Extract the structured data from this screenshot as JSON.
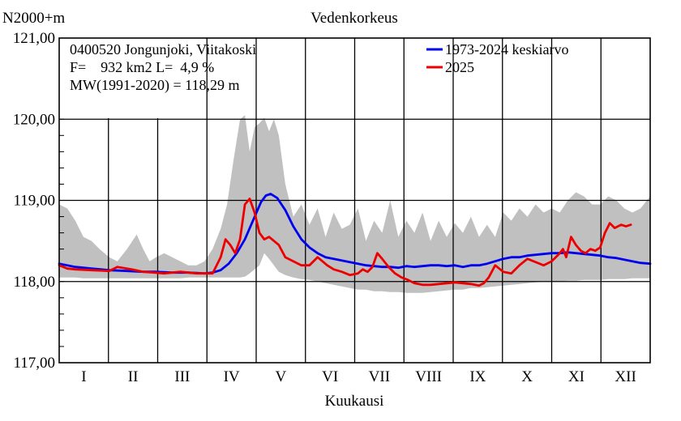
{
  "chart_data": {
    "type": "line",
    "title": "Vedenkorkeus",
    "ylabel": "N2000+m",
    "xlabel": "Kuukausi",
    "ylim": [
      117.0,
      121.0
    ],
    "yticks": [
      117.0,
      118.0,
      119.0,
      120.0,
      121.0
    ],
    "ytick_labels": [
      "117,00",
      "118,00",
      "119,00",
      "120,00",
      "121,00"
    ],
    "months": [
      "I",
      "II",
      "III",
      "IV",
      "V",
      "VI",
      "VII",
      "VIII",
      "IX",
      "X",
      "XI",
      "XII"
    ],
    "day_range": [
      0,
      366
    ],
    "info": {
      "station": "0400520 Jongunjoki, Viitakoski",
      "area": "F=    932 km2 L=  4,9 %",
      "mw": "MW(1991-2020) = 118,29 m"
    },
    "legend": [
      {
        "label": "1973-2024 keskiarvo",
        "color": "#0000ee"
      },
      {
        "label": "2025",
        "color": "#ee0000"
      }
    ],
    "band_color": "#c0c0c0",
    "band": {
      "days": [
        0,
        5,
        10,
        15,
        20,
        25,
        31,
        36,
        42,
        48,
        52,
        56,
        60,
        65,
        70,
        75,
        80,
        85,
        90,
        95,
        100,
        104,
        108,
        112,
        115,
        118,
        121,
        124,
        127,
        130,
        133,
        136,
        140,
        145,
        150,
        155,
        160,
        165,
        170,
        175,
        180,
        185,
        190,
        195,
        200,
        205,
        210,
        215,
        220,
        225,
        230,
        235,
        240,
        245,
        250,
        255,
        260,
        265,
        270,
        275,
        280,
        285,
        290,
        295,
        300,
        305,
        310,
        315,
        320,
        325,
        330,
        335,
        340,
        345,
        350,
        355,
        360,
        366
      ],
      "max": [
        118.95,
        118.9,
        118.75,
        118.55,
        118.5,
        118.4,
        118.3,
        118.25,
        118.4,
        118.58,
        118.4,
        118.25,
        118.3,
        118.35,
        118.3,
        118.25,
        118.2,
        118.2,
        118.25,
        118.4,
        118.65,
        118.95,
        119.5,
        120.0,
        120.05,
        119.6,
        119.9,
        119.95,
        120.02,
        119.85,
        120.0,
        119.8,
        119.2,
        118.8,
        118.95,
        118.7,
        118.9,
        118.55,
        118.85,
        118.65,
        118.7,
        118.9,
        118.5,
        118.75,
        118.6,
        119.0,
        118.55,
        118.75,
        118.6,
        118.85,
        118.5,
        118.75,
        118.55,
        118.72,
        118.6,
        118.8,
        118.55,
        118.7,
        118.55,
        118.85,
        118.75,
        118.9,
        118.8,
        118.95,
        118.85,
        118.9,
        118.85,
        119.0,
        119.1,
        119.05,
        118.95,
        118.95,
        119.05,
        119.0,
        118.9,
        118.85,
        118.9,
        119.05
      ],
      "min": [
        118.05,
        118.05,
        118.05,
        118.04,
        118.04,
        118.04,
        118.04,
        118.04,
        118.04,
        118.04,
        118.04,
        118.04,
        118.04,
        118.04,
        118.04,
        118.04,
        118.05,
        118.05,
        118.05,
        118.05,
        118.05,
        118.05,
        118.05,
        118.05,
        118.06,
        118.1,
        118.15,
        118.2,
        118.35,
        118.28,
        118.2,
        118.12,
        118.08,
        118.05,
        118.03,
        118.02,
        118.0,
        117.98,
        117.96,
        117.94,
        117.92,
        117.9,
        117.9,
        117.88,
        117.88,
        117.87,
        117.87,
        117.86,
        117.86,
        117.86,
        117.87,
        117.88,
        117.89,
        117.9,
        117.9,
        117.92,
        117.92,
        117.93,
        117.94,
        117.95,
        117.96,
        117.97,
        117.98,
        117.99,
        118.0,
        118.0,
        118.0,
        118.01,
        118.01,
        118.02,
        118.02,
        118.02,
        118.03,
        118.03,
        118.03,
        118.04,
        118.04,
        118.04
      ]
    },
    "series": [
      {
        "name": "1973-2024 keskiarvo",
        "days": [
          0,
          10,
          20,
          31,
          42,
          52,
          59,
          70,
          80,
          90,
          95,
          100,
          105,
          110,
          115,
          120,
          125,
          128,
          131,
          135,
          140,
          145,
          150,
          155,
          160,
          165,
          170,
          175,
          180,
          185,
          190,
          195,
          200,
          205,
          210,
          215,
          220,
          225,
          230,
          235,
          240,
          245,
          250,
          255,
          260,
          265,
          270,
          275,
          280,
          285,
          290,
          295,
          300,
          305,
          310,
          315,
          320,
          325,
          330,
          335,
          340,
          345,
          350,
          355,
          360,
          366
        ],
        "values": [
          118.22,
          118.18,
          118.16,
          118.14,
          118.13,
          118.12,
          118.12,
          118.11,
          118.11,
          118.1,
          118.11,
          118.14,
          118.22,
          118.35,
          118.52,
          118.75,
          118.98,
          119.06,
          119.08,
          119.03,
          118.88,
          118.68,
          118.52,
          118.42,
          118.35,
          118.3,
          118.28,
          118.26,
          118.24,
          118.22,
          118.2,
          118.19,
          118.18,
          118.18,
          118.17,
          118.19,
          118.18,
          118.19,
          118.2,
          118.2,
          118.19,
          118.2,
          118.18,
          118.2,
          118.2,
          118.22,
          118.25,
          118.28,
          118.3,
          118.3,
          118.32,
          118.33,
          118.34,
          118.35,
          118.35,
          118.36,
          118.35,
          118.34,
          118.33,
          118.32,
          118.3,
          118.29,
          118.27,
          118.25,
          118.23,
          118.22
        ]
      },
      {
        "name": "2025",
        "days": [
          0,
          5,
          10,
          20,
          31,
          36,
          45,
          52,
          59,
          65,
          75,
          85,
          90,
          95,
          100,
          103,
          106,
          109,
          112,
          115,
          118,
          121,
          124,
          127,
          130,
          133,
          136,
          140,
          145,
          150,
          155,
          160,
          163,
          166,
          170,
          175,
          180,
          185,
          188,
          191,
          194,
          197,
          200,
          204,
          208,
          212,
          216,
          220,
          225,
          230,
          235,
          240,
          245,
          250,
          255,
          260,
          263,
          266,
          270,
          275,
          280,
          285,
          290,
          295,
          300,
          305,
          310,
          312,
          314,
          317,
          320,
          323,
          326,
          329,
          332,
          335,
          338,
          341,
          344,
          348,
          351,
          354
        ],
        "values": [
          118.2,
          118.16,
          118.15,
          118.14,
          118.13,
          118.18,
          118.15,
          118.12,
          118.11,
          118.1,
          118.12,
          118.1,
          118.1,
          118.1,
          118.3,
          118.52,
          118.45,
          118.35,
          118.52,
          118.95,
          119.02,
          118.85,
          118.6,
          118.52,
          118.55,
          118.5,
          118.45,
          118.3,
          118.25,
          118.2,
          118.2,
          118.3,
          118.25,
          118.2,
          118.15,
          118.12,
          118.08,
          118.1,
          118.15,
          118.12,
          118.18,
          118.35,
          118.28,
          118.18,
          118.1,
          118.05,
          118.02,
          117.98,
          117.96,
          117.96,
          117.97,
          117.98,
          117.99,
          117.98,
          117.97,
          117.95,
          117.98,
          118.05,
          118.2,
          118.12,
          118.1,
          118.2,
          118.28,
          118.24,
          118.2,
          118.25,
          118.35,
          118.4,
          118.3,
          118.55,
          118.45,
          118.38,
          118.35,
          118.4,
          118.38,
          118.42,
          118.6,
          118.72,
          118.66,
          118.7,
          118.68,
          118.7
        ]
      }
    ]
  }
}
